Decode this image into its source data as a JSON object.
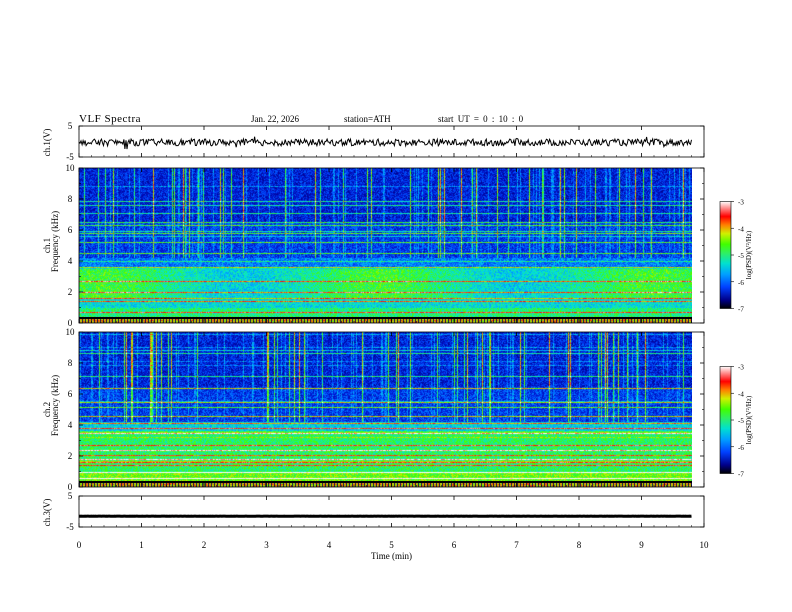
{
  "header": {
    "title": "VLF  Spectra",
    "date": "Jan. 22, 2026",
    "station": "station=ATH",
    "start": "start  UT  =    0 : 10 : 0"
  },
  "chart_data": [
    {
      "type": "line",
      "name": "ch1-waveform",
      "ylabel": "ch.1(V)",
      "ylim": [
        -5,
        5
      ],
      "yticks": [
        "5",
        "-5"
      ],
      "note": "noisy waveform around ~0 V with small spikes"
    },
    {
      "type": "heatmap",
      "name": "ch1-spectrogram",
      "ylabel": "Frequency  (kHz)",
      "channel_label": "ch.1",
      "ylim": [
        0,
        10
      ],
      "yticks": [
        "0",
        "2",
        "4",
        "6",
        "8",
        "10"
      ],
      "colorbar": {
        "label": "log(PSD)(V²/Hz)",
        "range": [
          -7,
          -3
        ],
        "ticks": [
          "-3",
          "-4",
          "-5",
          "-6",
          "-7"
        ]
      }
    },
    {
      "type": "heatmap",
      "name": "ch2-spectrogram",
      "ylabel": "Frequency  (kHz)",
      "channel_label": "ch.2",
      "ylim": [
        0,
        10
      ],
      "yticks": [
        "0",
        "2",
        "4",
        "6",
        "8",
        "10"
      ],
      "colorbar": {
        "label": "log(PSD)(V²/Hz)",
        "range": [
          -7,
          -3
        ],
        "ticks": [
          "-3",
          "-4",
          "-5",
          "-6",
          "-7"
        ]
      }
    },
    {
      "type": "line",
      "name": "ch3-waveform",
      "ylabel": "ch.3(V)",
      "ylim": [
        -5,
        5
      ],
      "yticks": [
        "5",
        "-5"
      ],
      "note": "flat line near -1.5 V"
    }
  ],
  "xaxis": {
    "label": "Time  (min)",
    "xlim": [
      0,
      10
    ],
    "ticks": [
      "0",
      "1",
      "2",
      "3",
      "4",
      "5",
      "6",
      "7",
      "8",
      "9",
      "10"
    ],
    "data_end": 9.8
  },
  "colors": {
    "colormap": [
      "#000000",
      "#00008a",
      "#0018d0",
      "#0050ff",
      "#00a0ff",
      "#00e0e0",
      "#20f080",
      "#40ff00",
      "#c8f000",
      "#ff8000",
      "#ff0000",
      "#ff8080",
      "#ffffff"
    ]
  }
}
